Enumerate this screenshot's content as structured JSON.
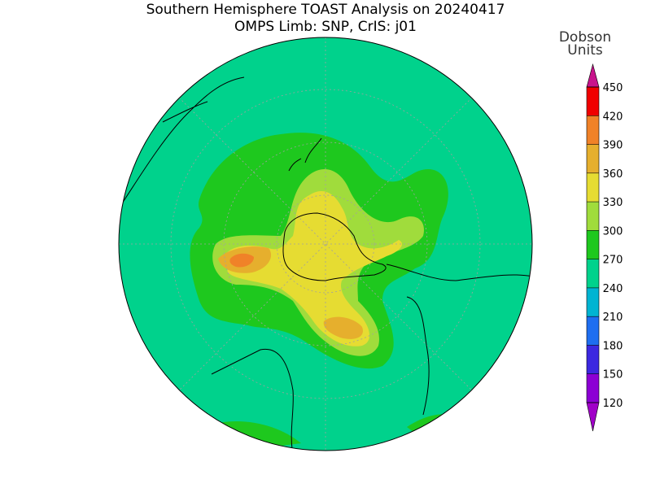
{
  "title": "Southern Hemisphere TOAST Analysis on 20240417",
  "subtitle": "OMPS Limb: SNP, CrIS: j01",
  "colorbar": {
    "unit_lines": [
      "Dobson",
      "Units"
    ],
    "ticks": [
      120,
      150,
      180,
      210,
      240,
      270,
      300,
      330,
      360,
      390,
      420,
      450
    ],
    "colors": [
      "#a000c8",
      "#8c00d4",
      "#3c28e0",
      "#1e6ef0",
      "#00b4d2",
      "#00d28c",
      "#1ec81e",
      "#a0dc3c",
      "#e6dc32",
      "#e6af2d",
      "#f08228",
      "#f00000",
      "#c8148c"
    ]
  }
}
